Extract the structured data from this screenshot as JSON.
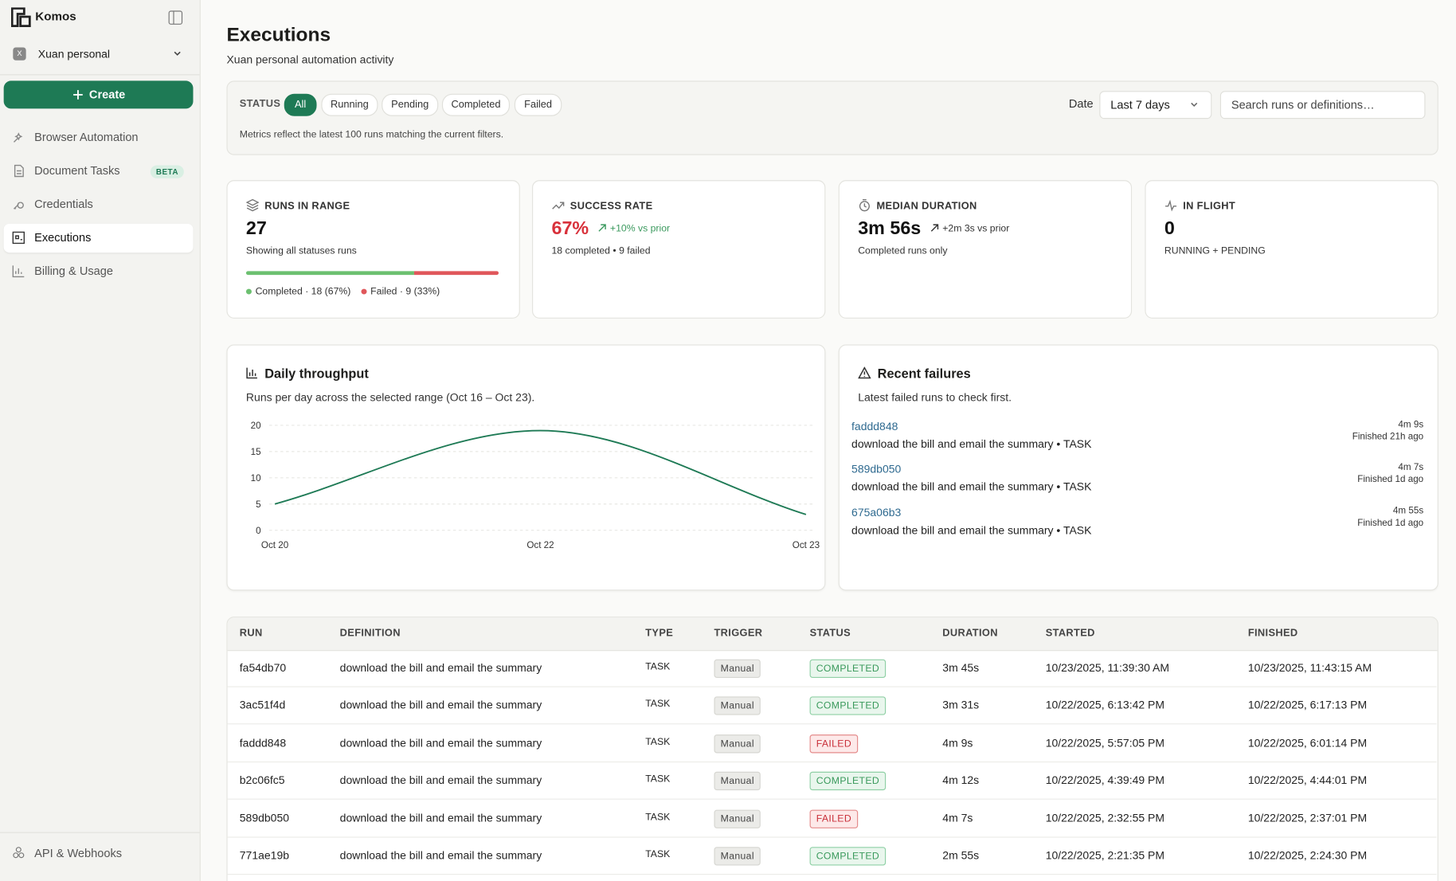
{
  "sidebar": {
    "brand": "Komos",
    "workspace": "Xuan personal",
    "workspace_initial": "X",
    "create": "Create",
    "nav": [
      {
        "label": "Browser Automation"
      },
      {
        "label": "Document Tasks",
        "badge": "BETA"
      },
      {
        "label": "Credentials"
      },
      {
        "label": "Executions",
        "active": true
      },
      {
        "label": "Billing & Usage"
      }
    ],
    "footer": "API & Webhooks"
  },
  "header": {
    "title": "Executions",
    "subtitle": "Xuan personal automation activity"
  },
  "filters": {
    "status_label": "STATUS",
    "statuses": [
      "All",
      "Running",
      "Pending",
      "Completed",
      "Failed"
    ],
    "date_label": "Date",
    "date_value": "Last 7 days",
    "search_placeholder": "Search runs or definitions…",
    "note": "Metrics reflect the latest 100 runs matching the current filters."
  },
  "metrics": [
    {
      "label": "RUNS IN RANGE",
      "value": "27",
      "caption": "Showing all statuses runs"
    },
    {
      "label": "SUCCESS RATE",
      "value": "67%",
      "delta": "+10% vs prior",
      "caption": "18 completed • 9 failed",
      "color": "#d8313b"
    },
    {
      "label": "MEDIAN DURATION",
      "value": "3m 56s",
      "delta": "+2m 3s vs prior",
      "caption": "Completed runs only"
    },
    {
      "label": "IN FLIGHT",
      "value": "0",
      "caption": "RUNNING + PENDING"
    }
  ],
  "breakdown": [
    {
      "label": "Completed · 18 (67%)",
      "value": 18,
      "color": "#6cc070"
    },
    {
      "label": "Failed · 9 (33%)",
      "value": 9,
      "color": "#e0575b"
    }
  ],
  "chart_data": {
    "type": "line",
    "title": "Daily throughput",
    "subtitle": "Runs per day across the selected range (Oct 16 – Oct 23).",
    "categories": [
      "Oct 20",
      "Oct 22",
      "Oct 23"
    ],
    "values": [
      5,
      19,
      3
    ],
    "color": "#1e7a55",
    "ylim": [
      0,
      20
    ],
    "yticks": [
      0,
      5,
      10,
      15,
      20
    ],
    "grid": true
  },
  "failures": {
    "title": "Recent failures",
    "subtitle": "Latest failed runs to check first.",
    "items": [
      {
        "id": "faddd848",
        "description": "download the bill and email the summary • TASK",
        "duration": "4m 9s",
        "finished": "Finished 21h ago"
      },
      {
        "id": "589db050",
        "description": "download the bill and email the summary • TASK",
        "duration": "4m 7s",
        "finished": "Finished 1d ago"
      },
      {
        "id": "675a06b3",
        "description": "download the bill and email the summary • TASK",
        "duration": "4m 55s",
        "finished": "Finished 1d ago"
      }
    ]
  },
  "table": {
    "columns": [
      "RUN",
      "DEFINITION",
      "TYPE",
      "TRIGGER",
      "STATUS",
      "DURATION",
      "STARTED",
      "FINISHED"
    ],
    "rows": [
      {
        "run": "fa54db70",
        "definition": "download the bill and email the summary",
        "type": "TASK",
        "trigger": "Manual",
        "status": "COMPLETED",
        "status_color": "green",
        "duration": "3m 45s",
        "started": "10/23/2025, 11:39:30 AM",
        "finished": "10/23/2025, 11:43:15 AM"
      },
      {
        "run": "3ac51f4d",
        "definition": "download the bill and email the summary",
        "type": "TASK",
        "trigger": "Manual",
        "status": "COMPLETED",
        "status_color": "green",
        "duration": "3m 31s",
        "started": "10/22/2025, 6:13:42 PM",
        "finished": "10/22/2025, 6:17:13 PM"
      },
      {
        "run": "faddd848",
        "definition": "download the bill and email the summary",
        "type": "TASK",
        "trigger": "Manual",
        "status": "FAILED",
        "status_color": "red",
        "duration": "4m 9s",
        "started": "10/22/2025, 5:57:05 PM",
        "finished": "10/22/2025, 6:01:14 PM"
      },
      {
        "run": "b2c06fc5",
        "definition": "download the bill and email the summary",
        "type": "TASK",
        "trigger": "Manual",
        "status": "COMPLETED",
        "status_color": "green",
        "duration": "4m 12s",
        "started": "10/22/2025, 4:39:49 PM",
        "finished": "10/22/2025, 4:44:01 PM"
      },
      {
        "run": "589db050",
        "definition": "download the bill and email the summary",
        "type": "TASK",
        "trigger": "Manual",
        "status": "FAILED",
        "status_color": "red",
        "duration": "4m 7s",
        "started": "10/22/2025, 2:32:55 PM",
        "finished": "10/22/2025, 2:37:01 PM"
      },
      {
        "run": "771ae19b",
        "definition": "download the bill and email the summary",
        "type": "TASK",
        "trigger": "Manual",
        "status": "COMPLETED",
        "status_color": "green",
        "duration": "2m 55s",
        "started": "10/22/2025, 2:21:35 PM",
        "finished": "10/22/2025, 2:24:30 PM"
      }
    ]
  }
}
